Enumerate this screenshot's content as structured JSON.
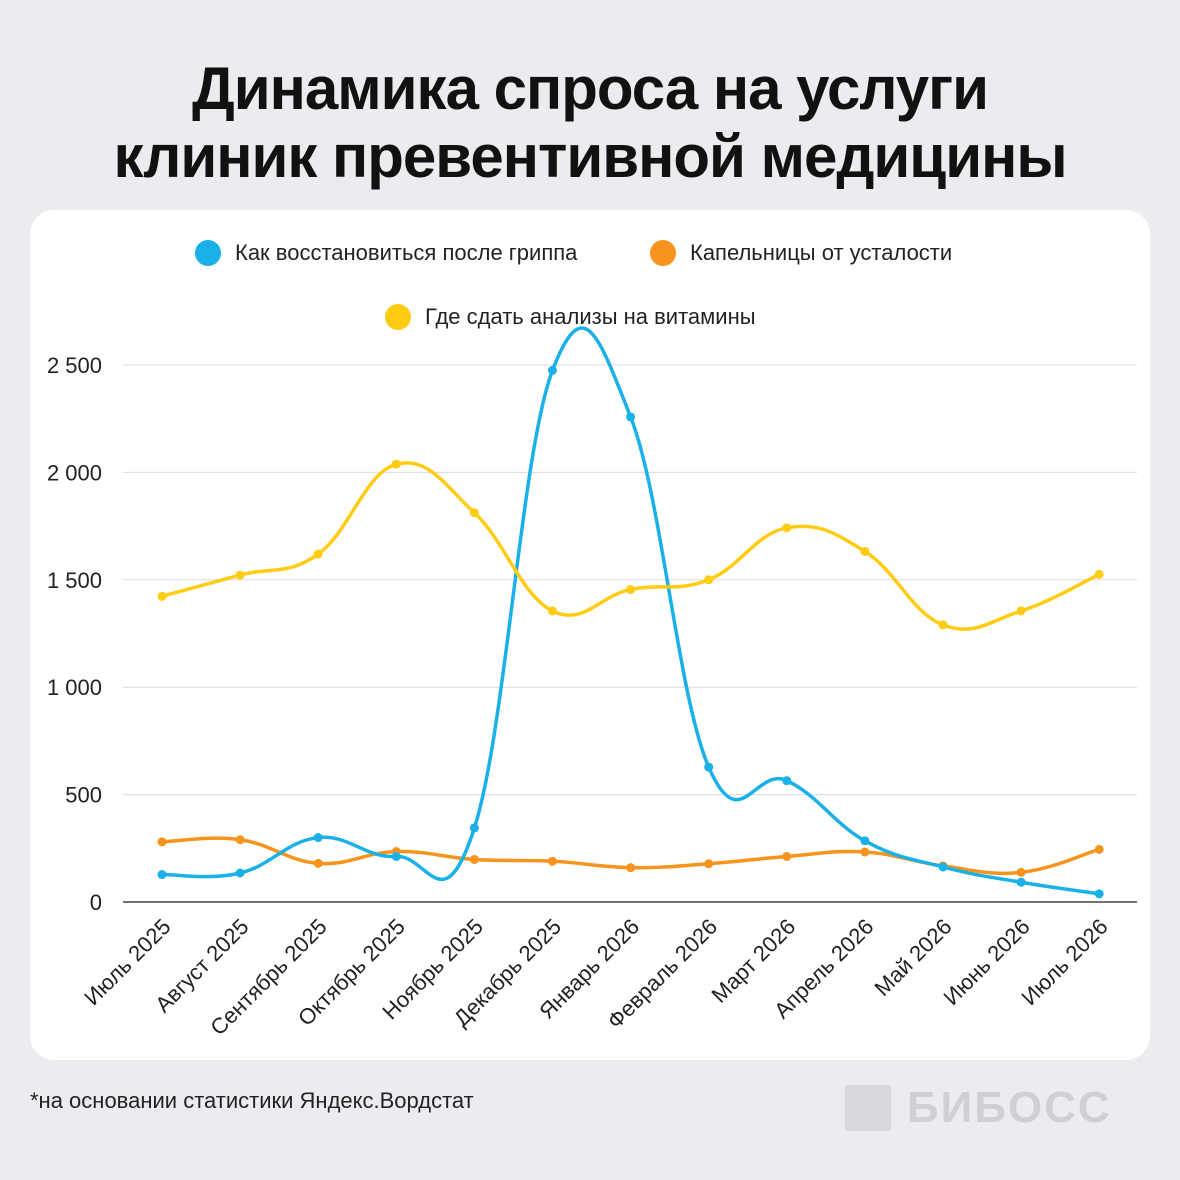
{
  "title_line1": "Динамика спроса на услуги",
  "title_line2": "клиник превентивной медицины",
  "footnote": "*на основании статистики Яндекс.Вордстат",
  "logo_text": "БИБОСС",
  "chart_data": {
    "type": "line",
    "title": "Динамика спроса на услуги клиник превентивной медицины",
    "categories": [
      "Июль 2025",
      "Август 2025",
      "Сентябрь 2025",
      "Октябрь 2025",
      "Ноябрь 2025",
      "Декабрь 2025",
      "Январь 2026",
      "Февраль 2026",
      "Март 2026",
      "Апрель 2026",
      "Май 2026",
      "Июнь 2026",
      "Июль 2026"
    ],
    "ylim": [
      0,
      2500
    ],
    "yticks": [
      0,
      500,
      1000,
      1500,
      2000,
      2500
    ],
    "ytick_labels": [
      "0",
      "500",
      "1 000",
      "1 500",
      "2 000",
      "2 500"
    ],
    "grid": true,
    "legend_position": "top",
    "series": [
      {
        "name": "Как восстановиться после гриппа",
        "color": "#1ab0e8",
        "values": [
          128,
          135,
          300,
          212,
          345,
          2475,
          2258,
          628,
          565,
          285,
          163,
          92,
          38
        ]
      },
      {
        "name": "Капельницы от усталости",
        "color": "#f7941d",
        "values": [
          280,
          290,
          180,
          235,
          198,
          190,
          160,
          178,
          212,
          233,
          168,
          138,
          245
        ]
      },
      {
        "name": "Где сдать анализы на витамины",
        "color": "#ffcc12",
        "values": [
          1423,
          1522,
          1620,
          2038,
          1812,
          1355,
          1455,
          1500,
          1742,
          1632,
          1290,
          1355,
          1525
        ]
      }
    ]
  }
}
